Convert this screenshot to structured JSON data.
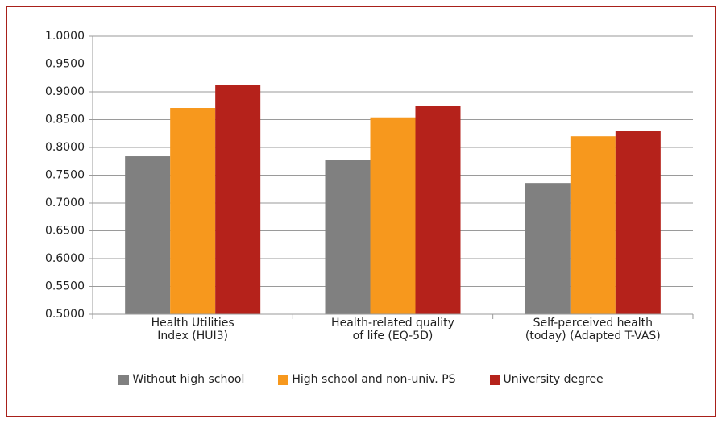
{
  "chart_data": {
    "type": "bar",
    "categories": [
      "Health Utilities\nIndex (HUI3)",
      "Health-related quality\nof life (EQ-5D)",
      "Self-perceived health\n(today) (Adapted T-VAS)"
    ],
    "series": [
      {
        "name": "Without high school",
        "color": "#808080",
        "values": [
          0.784,
          0.777,
          0.736
        ]
      },
      {
        "name": "High school and non-univ. PS",
        "color": "#f7981d",
        "values": [
          0.871,
          0.854,
          0.82
        ]
      },
      {
        "name": "University degree",
        "color": "#b5221b",
        "values": [
          0.912,
          0.875,
          0.83
        ]
      }
    ],
    "ylim": [
      0.5,
      1.0
    ],
    "yticks": [
      {
        "value": 0.5,
        "label": "0.5000"
      },
      {
        "value": 0.55,
        "label": "0.5500"
      },
      {
        "value": 0.6,
        "label": "0.6000"
      },
      {
        "value": 0.65,
        "label": "0.6500"
      },
      {
        "value": 0.7,
        "label": "0.7000"
      },
      {
        "value": 0.75,
        "label": "0.7500"
      },
      {
        "value": 0.8,
        "label": "0.8000"
      },
      {
        "value": 0.85,
        "label": "0.8500"
      },
      {
        "value": 0.9,
        "label": "0.9000"
      },
      {
        "value": 0.95,
        "label": "0.9500"
      },
      {
        "value": 1.0,
        "label": "1.0000"
      }
    ],
    "grid": true,
    "legend": "bottom"
  }
}
